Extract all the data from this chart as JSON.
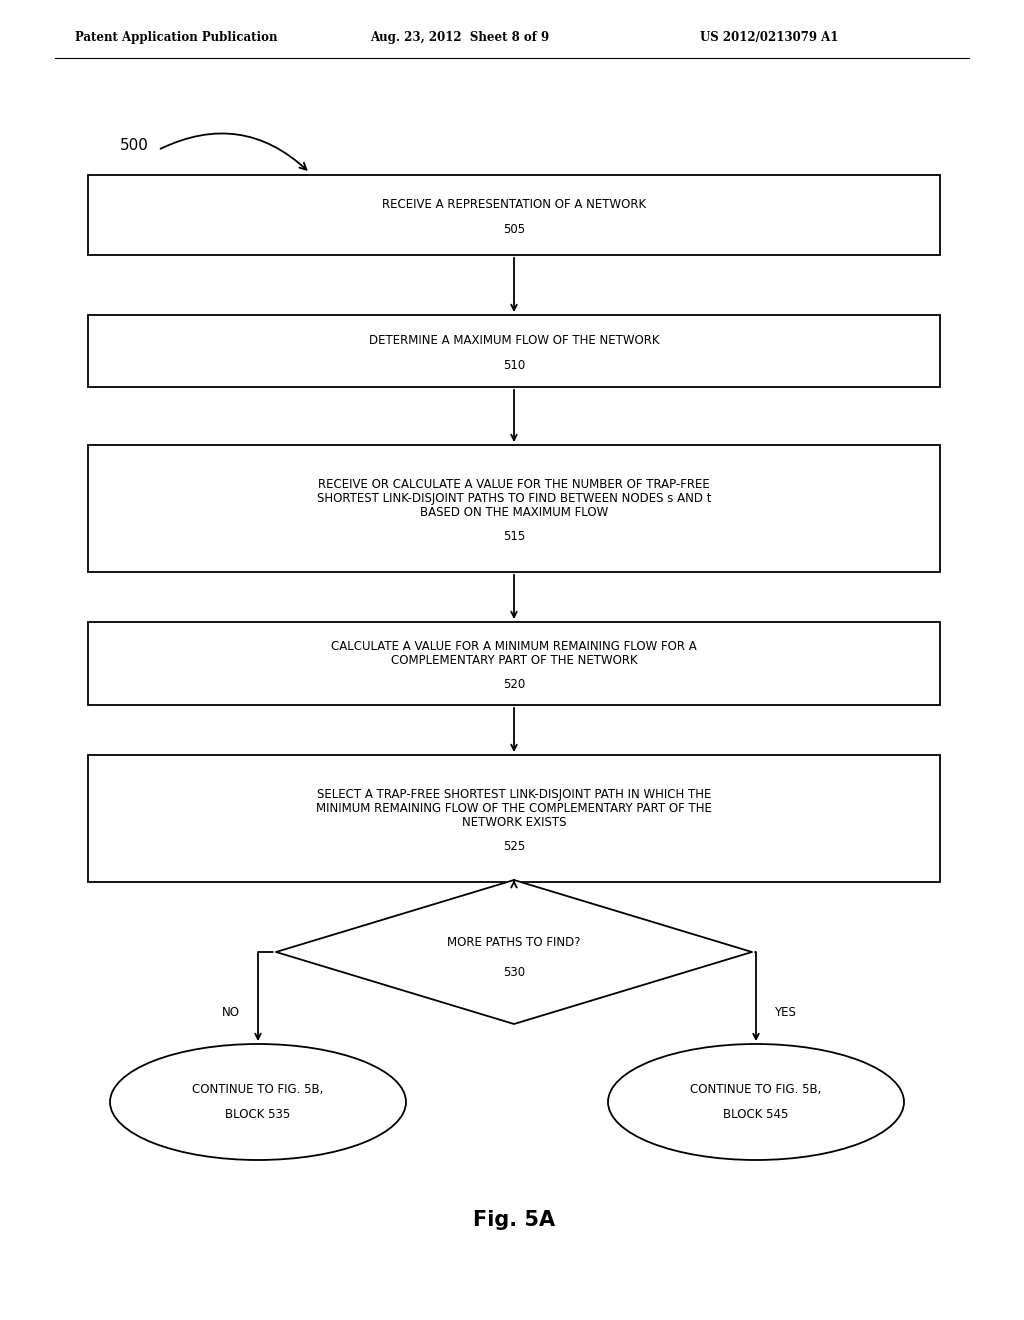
{
  "bg_color": "#ffffff",
  "header_left": "Patent Application Publication",
  "header_mid": "Aug. 23, 2012  Sheet 8 of 9",
  "header_right": "US 2012/0213079 A1",
  "figure_label": "Fig. 5A",
  "start_label": "500",
  "boxes": [
    {
      "id": "505",
      "lines": [
        "RECEIVE A REPRESENTATION OF A NETWORK"
      ],
      "label": "505"
    },
    {
      "id": "510",
      "lines": [
        "DETERMINE A MAXIMUM FLOW OF THE NETWORK"
      ],
      "label": "510"
    },
    {
      "id": "515",
      "lines": [
        "RECEIVE OR CALCULATE A VALUE FOR THE NUMBER OF TRAP-FREE",
        "SHORTEST LINK-DISJOINT PATHS TO FIND BETWEEN NODES s AND t",
        "BASED ON THE MAXIMUM FLOW"
      ],
      "label": "515"
    },
    {
      "id": "520",
      "lines": [
        "CALCULATE A VALUE FOR A MINIMUM REMAINING FLOW FOR A",
        "COMPLEMENTARY PART OF THE NETWORK"
      ],
      "label": "520"
    },
    {
      "id": "525",
      "lines": [
        "SELECT A TRAP-FREE SHORTEST LINK-DISJOINT PATH IN WHICH THE",
        "MINIMUM REMAINING FLOW OF THE COMPLEMENTARY PART OF THE",
        "NETWORK EXISTS"
      ],
      "label": "525"
    }
  ],
  "diamond": {
    "lines": [
      "MORE PATHS TO FIND?"
    ],
    "label": "530"
  },
  "ellipses": [
    {
      "id": "535",
      "lines": [
        "CONTINUE TO FIG. 5B,",
        "BLOCK 535"
      ],
      "branch": "NO"
    },
    {
      "id": "545",
      "lines": [
        "CONTINUE TO FIG. 5B,",
        "BLOCK 545"
      ],
      "branch": "YES"
    }
  ],
  "box_color": "#ffffff",
  "box_edge_color": "#000000",
  "text_color": "#000000",
  "arrow_color": "#000000",
  "font_size_box": 8.5,
  "font_size_header": 8.5,
  "font_size_fig": 15
}
